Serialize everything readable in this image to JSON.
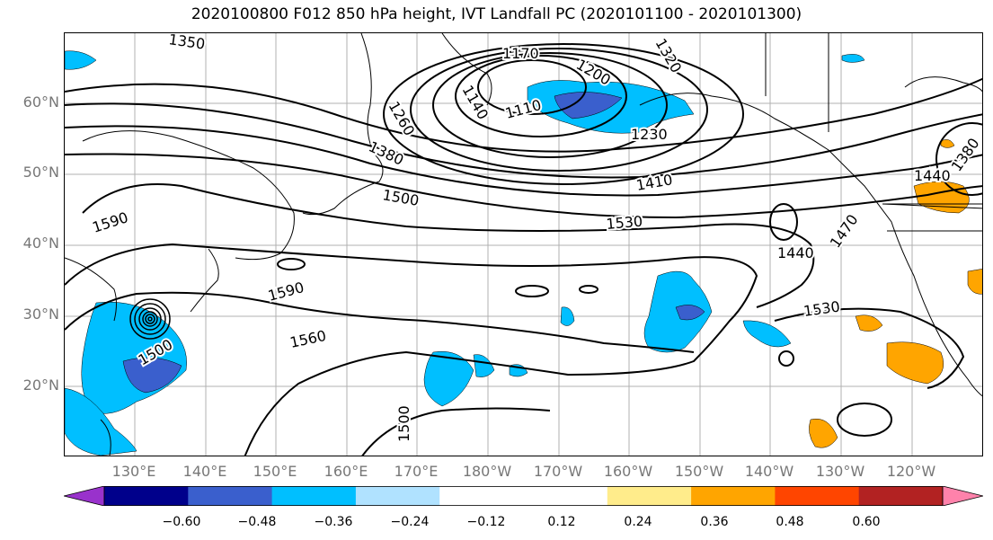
{
  "title": "2020100800 F012 850 hPa height, IVT Landfall PC (2020101100 - 2020101300)",
  "lat_ticks": [
    "60°N",
    "50°N",
    "40°N",
    "30°N",
    "20°N"
  ],
  "lon_ticks": [
    "130°E",
    "140°E",
    "150°E",
    "160°E",
    "170°E",
    "180°W",
    "170°W",
    "160°W",
    "150°W",
    "140°W",
    "130°W",
    "120°W"
  ],
  "contour_labels": [
    "1350",
    "1260",
    "1170",
    "1200",
    "1320",
    "1140",
    "1110",
    "1230",
    "1380",
    "1500",
    "1410",
    "1590",
    "1530",
    "1440",
    "1470",
    "1380",
    "1440",
    "1590",
    "1560",
    "1500",
    "1500",
    "1530"
  ],
  "colorbar": {
    "colors": [
      "#9932CC",
      "#00008B",
      "#3A5FCD",
      "#00BFFF",
      "#B0E2FF",
      "#FFFFFF",
      "#FFFFFF",
      "#FFEC8B",
      "#FFA500",
      "#FF4500",
      "#B22222",
      "#FF82AB"
    ],
    "labels": [
      "−0.60",
      "−0.48",
      "−0.36",
      "−0.24",
      "−0.12",
      "0.12",
      "0.24",
      "0.36",
      "0.48",
      "0.60"
    ]
  }
}
